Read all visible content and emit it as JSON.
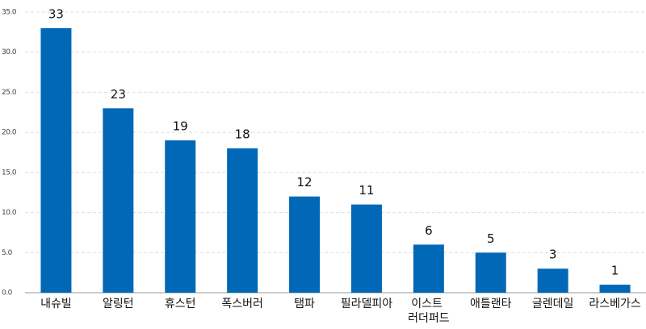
{
  "chart_data": {
    "type": "bar",
    "categories": [
      "내슈빌",
      "알링턴",
      "휴스턴",
      "폭스버러",
      "탬파",
      "필라델피아",
      "이스트 러더퍼드",
      "애틀랜타",
      "글렌데일",
      "라스베가스"
    ],
    "values": [
      33,
      23,
      19,
      18,
      12,
      11,
      6,
      5,
      3,
      1
    ],
    "color": "#0068b7",
    "ylim": [
      0,
      35
    ],
    "yticks": [
      {
        "value": 0,
        "label": "0.0"
      },
      {
        "value": 5,
        "label": "5.0"
      },
      {
        "value": 10,
        "label": "10.0"
      },
      {
        "value": 15,
        "label": "15.0"
      },
      {
        "value": 20,
        "label": "20.0"
      },
      {
        "value": 25,
        "label": "25.0"
      },
      {
        "value": 30,
        "label": "30.0"
      },
      {
        "value": 35,
        "label": "35.0"
      }
    ],
    "grid": true
  }
}
